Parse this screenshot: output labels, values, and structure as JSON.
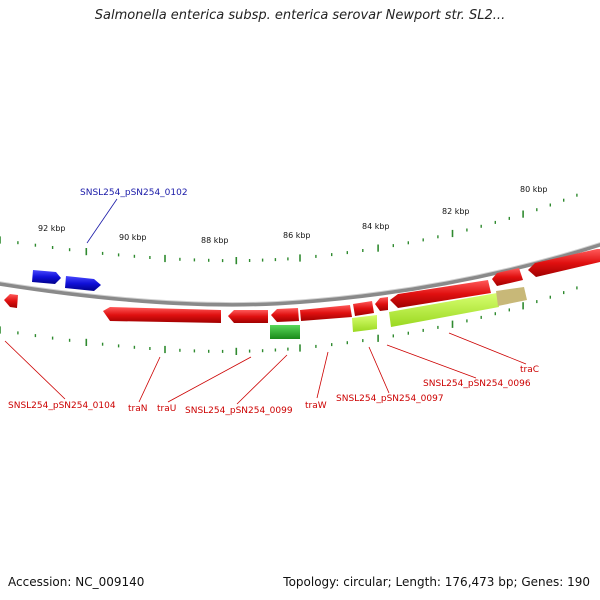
{
  "title": "Salmonella enterica subsp. enterica serovar Newport str. SL2...",
  "footer": {
    "accession": "Accession: NC_009140",
    "topology": "Topology: circular; Length: 176,473 bp; Genes: 190"
  },
  "kbp_labels": [
    "92 kbp",
    "90 kbp",
    "88 kbp",
    "86 kbp",
    "84 kbp",
    "82 kbp",
    "80 kbp"
  ],
  "gene_labels": [
    {
      "text": "SNSL254_pSN254_0102",
      "color": "#1a1aa8"
    },
    {
      "text": "SNSL254_pSN254_0104",
      "color": "#cc0000"
    },
    {
      "text": "traN",
      "color": "#cc0000"
    },
    {
      "text": "traU",
      "color": "#cc0000"
    },
    {
      "text": "SNSL254_pSN254_0099",
      "color": "#cc0000"
    },
    {
      "text": "traW",
      "color": "#cc0000"
    },
    {
      "text": "SNSL254_pSN254_0097",
      "color": "#cc0000"
    },
    {
      "text": "SNSL254_pSN254_0096",
      "color": "#cc0000"
    },
    {
      "text": "traC",
      "color": "#cc0000"
    }
  ],
  "colors": {
    "backbone": "#8a8a8a",
    "tick": "#2f8a2f",
    "cds_forward": "#e01010",
    "cds_blue": "#1010d8",
    "gene_green": "#2fb82f",
    "gene_lightgreen": "#b8f040",
    "gene_khaki": "#c8b878"
  }
}
